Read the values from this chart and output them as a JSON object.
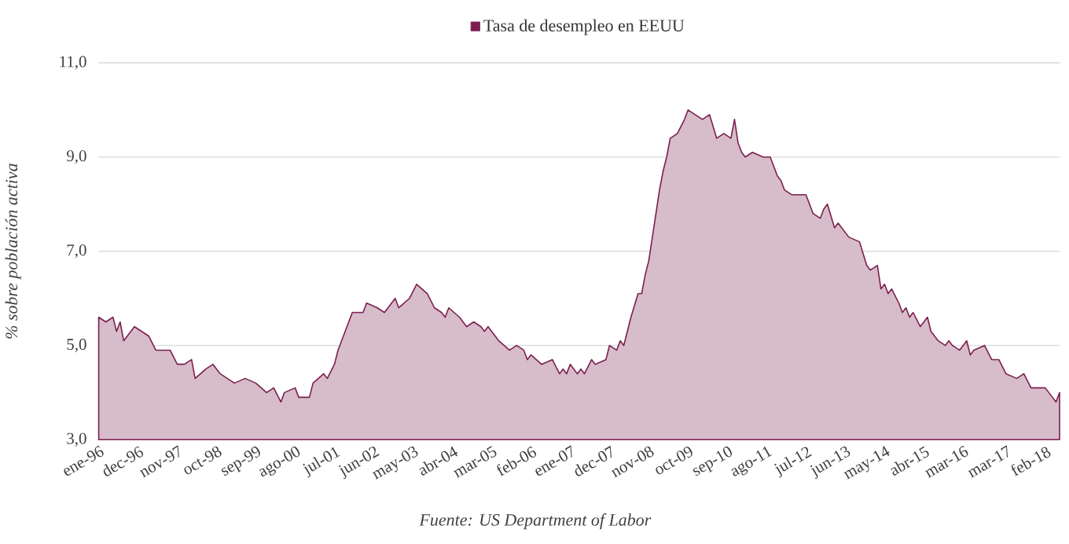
{
  "chart_data": {
    "type": "area",
    "ylabel": "% sobre población activa",
    "annotations": [
      "Fuente: US Department of Labor"
    ],
    "legend": "top",
    "grid": "y",
    "xlim": [
      "1996-01",
      "2018-06"
    ],
    "ylim": [
      3,
      11
    ],
    "yticks": [
      {
        "value": 3,
        "label": "3,0"
      },
      {
        "value": 5,
        "label": "5,0"
      },
      {
        "value": 7,
        "label": "7,0"
      },
      {
        "value": 9,
        "label": "9,0"
      },
      {
        "value": 11,
        "label": "11,0"
      }
    ],
    "xticks": [
      {
        "value": "1996-01",
        "label": "ene-96"
      },
      {
        "value": "1996-12",
        "label": "dec-96"
      },
      {
        "value": "1997-11",
        "label": "nov-97"
      },
      {
        "value": "1998-10",
        "label": "oct-98"
      },
      {
        "value": "1999-09",
        "label": "sep-99"
      },
      {
        "value": "2000-08",
        "label": "ago-00"
      },
      {
        "value": "2001-07",
        "label": "jul-01"
      },
      {
        "value": "2002-06",
        "label": "jun-02"
      },
      {
        "value": "2003-05",
        "label": "may-03"
      },
      {
        "value": "2004-04",
        "label": "abr-04"
      },
      {
        "value": "2005-03",
        "label": "mar-05"
      },
      {
        "value": "2006-02",
        "label": "feb-06"
      },
      {
        "value": "2007-01",
        "label": "ene-07"
      },
      {
        "value": "2007-12",
        "label": "dec-07"
      },
      {
        "value": "2008-11",
        "label": "nov-08"
      },
      {
        "value": "2009-10",
        "label": "oct-09"
      },
      {
        "value": "2010-09",
        "label": "sep-10"
      },
      {
        "value": "2011-08",
        "label": "ago-11"
      },
      {
        "value": "2012-07",
        "label": "jul-12"
      },
      {
        "value": "2013-06",
        "label": "jun-13"
      },
      {
        "value": "2014-05",
        "label": "may-14"
      },
      {
        "value": "2015-04",
        "label": "abr-15"
      },
      {
        "value": "2016-03",
        "label": "mar-16"
      },
      {
        "value": "2017-03",
        "label": "mar-17"
      },
      {
        "value": "2018-02",
        "label": "feb-18"
      }
    ],
    "series": [
      {
        "name": "Tasa de desempleo en EEUU",
        "color": "#7b1f4f",
        "x": [
          "1996-01",
          "1996-03",
          "1996-05",
          "1996-06",
          "1996-07",
          "1996-08",
          "1996-09",
          "1996-11",
          "1997-01",
          "1997-03",
          "1997-05",
          "1997-07",
          "1997-09",
          "1997-11",
          "1998-01",
          "1998-03",
          "1998-04",
          "1998-07",
          "1998-09",
          "1998-11",
          "1999-01",
          "1999-03",
          "1999-06",
          "1999-09",
          "1999-12",
          "2000-02",
          "2000-04",
          "2000-05",
          "2000-08",
          "2000-09",
          "2000-12",
          "2001-01",
          "2001-04",
          "2001-05",
          "2001-07",
          "2001-08",
          "2001-10",
          "2001-12",
          "2002-03",
          "2002-04",
          "2002-07",
          "2002-09",
          "2002-12",
          "2003-01",
          "2003-04",
          "2003-06",
          "2003-09",
          "2003-11",
          "2004-01",
          "2004-02",
          "2004-03",
          "2004-06",
          "2004-08",
          "2004-10",
          "2004-12",
          "2005-01",
          "2005-02",
          "2005-05",
          "2005-08",
          "2005-10",
          "2005-12",
          "2006-01",
          "2006-02",
          "2006-05",
          "2006-08",
          "2006-10",
          "2006-11",
          "2006-12",
          "2007-01",
          "2007-03",
          "2007-04",
          "2007-05",
          "2007-07",
          "2007-08",
          "2007-11",
          "2007-12",
          "2008-02",
          "2008-03",
          "2008-04",
          "2008-06",
          "2008-08",
          "2008-09",
          "2008-10",
          "2008-11",
          "2008-12",
          "2009-01",
          "2009-02",
          "2009-03",
          "2009-04",
          "2009-05",
          "2009-07",
          "2009-09",
          "2009-10",
          "2009-12",
          "2010-02",
          "2010-04",
          "2010-06",
          "2010-08",
          "2010-10",
          "2010-11",
          "2010-12",
          "2011-01",
          "2011-02",
          "2011-04",
          "2011-07",
          "2011-09",
          "2011-11",
          "2011-12",
          "2012-01",
          "2012-03",
          "2012-07",
          "2012-09",
          "2012-11",
          "2012-12",
          "2013-01",
          "2013-03",
          "2013-04",
          "2013-07",
          "2013-10",
          "2013-12",
          "2014-01",
          "2014-03",
          "2014-04",
          "2014-05",
          "2014-06",
          "2014-07",
          "2014-09",
          "2014-10",
          "2014-11",
          "2014-12",
          "2015-01",
          "2015-03",
          "2015-05",
          "2015-06",
          "2015-08",
          "2015-10",
          "2015-11",
          "2015-12",
          "2016-02",
          "2016-04",
          "2016-05",
          "2016-06",
          "2016-09",
          "2016-11",
          "2017-01",
          "2017-03",
          "2017-06",
          "2017-08",
          "2017-10",
          "2017-12",
          "2018-02",
          "2018-04",
          "2018-05",
          "2018-06"
        ],
        "values": [
          5.6,
          5.5,
          5.6,
          5.3,
          5.5,
          5.1,
          5.2,
          5.4,
          5.3,
          5.2,
          4.9,
          4.9,
          4.9,
          4.6,
          4.6,
          4.7,
          4.3,
          4.5,
          4.6,
          4.4,
          4.3,
          4.2,
          4.3,
          4.2,
          4.0,
          4.1,
          3.8,
          4.0,
          4.1,
          3.9,
          3.9,
          4.2,
          4.4,
          4.3,
          4.6,
          4.9,
          5.3,
          5.7,
          5.7,
          5.9,
          5.8,
          5.7,
          6.0,
          5.8,
          6.0,
          6.3,
          6.1,
          5.8,
          5.7,
          5.6,
          5.8,
          5.6,
          5.4,
          5.5,
          5.4,
          5.3,
          5.4,
          5.1,
          4.9,
          5.0,
          4.9,
          4.7,
          4.8,
          4.6,
          4.7,
          4.4,
          4.5,
          4.4,
          4.6,
          4.4,
          4.5,
          4.4,
          4.7,
          4.6,
          4.7,
          5.0,
          4.9,
          5.1,
          5.0,
          5.6,
          6.1,
          6.1,
          6.5,
          6.8,
          7.3,
          7.8,
          8.3,
          8.7,
          9.0,
          9.4,
          9.5,
          9.8,
          10.0,
          9.9,
          9.8,
          9.9,
          9.4,
          9.5,
          9.4,
          9.8,
          9.3,
          9.1,
          9.0,
          9.1,
          9.0,
          9.0,
          8.6,
          8.5,
          8.3,
          8.2,
          8.2,
          7.8,
          7.7,
          7.9,
          8.0,
          7.5,
          7.6,
          7.3,
          7.2,
          6.7,
          6.6,
          6.7,
          6.2,
          6.3,
          6.1,
          6.2,
          5.9,
          5.7,
          5.8,
          5.6,
          5.7,
          5.4,
          5.6,
          5.3,
          5.1,
          5.0,
          5.1,
          5.0,
          4.9,
          5.1,
          4.8,
          4.9,
          5.0,
          4.7,
          4.7,
          4.4,
          4.3,
          4.4,
          4.1,
          4.1,
          4.1,
          3.9,
          3.8,
          4.0
        ]
      }
    ]
  }
}
